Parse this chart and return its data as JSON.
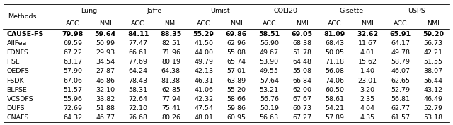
{
  "dataset_groups": [
    {
      "name": "Lung",
      "cols": [
        0,
        1
      ]
    },
    {
      "name": "Jaffe",
      "cols": [
        2,
        3
      ]
    },
    {
      "name": "Umist",
      "cols": [
        4,
        5
      ]
    },
    {
      "name": "COLI20",
      "cols": [
        6,
        7
      ]
    },
    {
      "name": "Gisette",
      "cols": [
        8,
        9
      ]
    },
    {
      "name": "USPS",
      "cols": [
        10,
        11
      ]
    }
  ],
  "methods": [
    "CAUSE-FS",
    "AllFea",
    "FDNFS",
    "HSL",
    "OEDFS",
    "FSDK",
    "BLFSE",
    "VCSDFS",
    "DUFS",
    "CNAFS"
  ],
  "bold_row": 0,
  "data": [
    [
      "79.98",
      "59.64",
      "84.11",
      "88.35",
      "55.29",
      "69.86",
      "58.51",
      "69.05",
      "81.09",
      "32.62",
      "65.91",
      "59.20"
    ],
    [
      "69.59",
      "50.99",
      "77.47",
      "82.51",
      "41.50",
      "62.96",
      "56.90",
      "68.38",
      "68.43",
      "11.67",
      "64.17",
      "56.73"
    ],
    [
      "67.22",
      "29.93",
      "66.61",
      "71.96",
      "44.00",
      "55.08",
      "49.67",
      "51.78",
      "50.05",
      "4.01",
      "49.78",
      "42.21"
    ],
    [
      "63.17",
      "34.54",
      "77.69",
      "80.19",
      "49.79",
      "65.74",
      "53.90",
      "64.48",
      "71.18",
      "15.62",
      "58.79",
      "51.55"
    ],
    [
      "57.90",
      "27.87",
      "64.24",
      "64.38",
      "42.13",
      "57.01",
      "49.55",
      "55.08",
      "56.08",
      "1.40",
      "46.07",
      "38.07"
    ],
    [
      "67.06",
      "46.86",
      "78.43",
      "81.38",
      "46.31",
      "63.89",
      "57.64",
      "66.84",
      "74.06",
      "23.01",
      "62.65",
      "56.44"
    ],
    [
      "51.57",
      "32.10",
      "58.31",
      "62.85",
      "41.06",
      "55.20",
      "53.21",
      "62.00",
      "60.50",
      "3.20",
      "52.79",
      "43.12"
    ],
    [
      "55.96",
      "33.82",
      "72.64",
      "77.94",
      "42.32",
      "58.66",
      "56.76",
      "67.67",
      "58.61",
      "2.35",
      "56.81",
      "46.49"
    ],
    [
      "72.69",
      "51.88",
      "72.10",
      "75.41",
      "47.54",
      "59.86",
      "50.19",
      "60.73",
      "54.21",
      "4.04",
      "62.77",
      "52.79"
    ],
    [
      "64.32",
      "46.77",
      "76.68",
      "80.26",
      "48.01",
      "60.95",
      "56.63",
      "67.27",
      "57.89",
      "4.35",
      "61.57",
      "53.18"
    ]
  ],
  "col_labels": [
    "ACC",
    "NMI",
    "ACC",
    "NMI",
    "ACC",
    "NMI",
    "ACC",
    "NMI",
    "ACC",
    "NMI",
    "ACC",
    "NMI"
  ],
  "font_size": 6.8,
  "bg_color": "#ffffff",
  "text_color": "#000000"
}
